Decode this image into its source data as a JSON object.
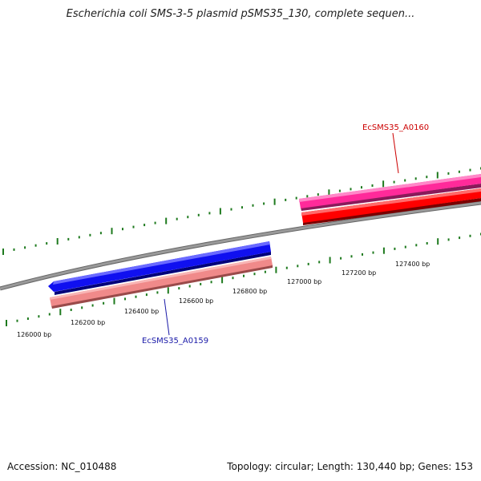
{
  "title": "Escherichia coli SMS-3-5 plasmid pSMS35_130, complete sequen...",
  "footer": {
    "accession": "Accession: NC_010488",
    "summary": "Topology: circular; Length: 130,440 bp; Genes: 153"
  },
  "ticks": {
    "unit": "bp",
    "labels": [
      "126000 bp",
      "126200 bp",
      "126400 bp",
      "126600 bp",
      "126800 bp",
      "127000 bp",
      "127200 bp",
      "127400 bp"
    ]
  },
  "genes": [
    {
      "name": "EcSMS35_A0159",
      "label_color": "#1a1aa8",
      "strand": "reverse"
    },
    {
      "name": "EcSMS35_A0160",
      "label_color": "#cc0000",
      "strand": "forward"
    }
  ],
  "colors": {
    "backbone": "#888888",
    "tick": "#1e7a1e",
    "gene_blue": "#0000ee",
    "gene_red": "#ff0000",
    "gene_pink": "#ff3399",
    "gene_salmon": "#f08080"
  }
}
